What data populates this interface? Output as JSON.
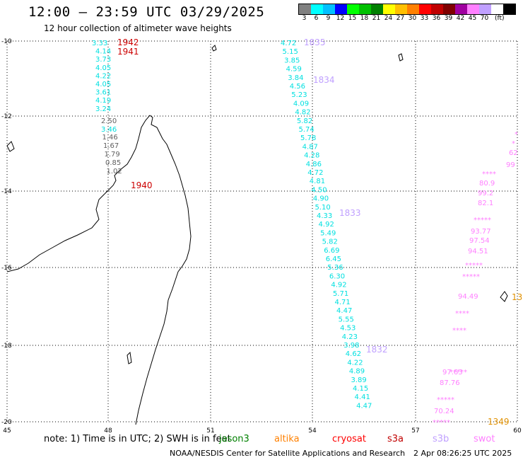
{
  "header": {
    "title": "12:00 – 23:59 UTC 03/29/2025",
    "subtitle": "12 hour collection of altimeter wave heights"
  },
  "colorbar": {
    "colors": [
      "#808080",
      "#00ffff",
      "#00c0ff",
      "#0000ff",
      "#00ff00",
      "#00c000",
      "#008000",
      "#ffff00",
      "#ffc000",
      "#ff8000",
      "#ff0000",
      "#c00000",
      "#800000",
      "#a000a0",
      "#ff80ff",
      "#c0a0ff",
      "#ffffff",
      "#000000"
    ],
    "labels": [
      "3",
      "6",
      "9",
      "12",
      "15",
      "18",
      "21",
      "24",
      "27",
      "30",
      "33",
      "36",
      "39",
      "42",
      "45",
      "70"
    ],
    "unit": "(ft)"
  },
  "axes": {
    "lat_labels": [
      "-10",
      "-12",
      "-14",
      "-16",
      "-18",
      "-20"
    ],
    "lon_labels": [
      "45",
      "48",
      "51",
      "54",
      "57",
      "60"
    ]
  },
  "tracks": {
    "jason": {
      "color": "#00e0e0",
      "values_a": [
        "3.33",
        "4.14",
        "3.73",
        "4.05",
        "4.22",
        "4.05",
        "3.61",
        "4.19",
        "3.24"
      ],
      "values_b": [
        "3.46"
      ],
      "time_top": "1942",
      "time_mid": "1941",
      "time_low": "1940",
      "time_color": "#cc0000"
    },
    "gray": {
      "color": "#606060",
      "values": [
        "2.50",
        "1.46",
        "1.67",
        "1.79",
        "0.85",
        "1.02"
      ]
    },
    "s3b": {
      "color": "#00e0e0",
      "values": [
        "4.72",
        "5.15",
        "3.85",
        "4.59",
        "3.84",
        "4.56",
        "5.23",
        "4.09",
        "4.82",
        "5.82",
        "5.74",
        "5.78",
        "4.87",
        "4.28",
        "4.86",
        "4.72",
        "4.81",
        "4.50",
        "4.90",
        "5.10",
        "4.33",
        "4.92",
        "5.49",
        "5.82",
        "6.69",
        "6.45",
        "5.36",
        "6.30",
        "4.92",
        "5.71",
        "4.71",
        "4.47",
        "5.55",
        "4.53",
        "4.23",
        "3.98",
        "4.62",
        "4.22",
        "4.89",
        "3.89",
        "4.15",
        "4.41",
        "4.47"
      ],
      "times": [
        "1835",
        "1834",
        "1833",
        "1832"
      ],
      "time_color": "#c0a0ff"
    },
    "swot": {
      "color": "#ff80ff",
      "values": [
        "*",
        "*",
        "62",
        "99",
        "****",
        "80.9",
        "99.2",
        "82.1",
        "*****",
        "93.77",
        "97.54",
        "94.51",
        "*****",
        "*****",
        "94.49",
        "****",
        "****",
        "*****",
        "97.63",
        "87.76",
        "*****",
        "70.24",
        "*****"
      ],
      "time": "1349",
      "time_color": "#e09000"
    }
  },
  "legend": {
    "note": "note:  1) Time is in UTC; 2) SWH is in feet",
    "items": [
      {
        "label": "jason3",
        "color": "#008000"
      },
      {
        "label": "altika",
        "color": "#ff8000"
      },
      {
        "label": "cryosat",
        "color": "#ff0000"
      },
      {
        "label": "s3a",
        "color": "#c00000"
      },
      {
        "label": "s3b",
        "color": "#c0a0ff"
      },
      {
        "label": "swot",
        "color": "#ff80ff"
      }
    ]
  },
  "footer": {
    "credit": "NOAA/NESDIS Center for Satellite Applications and Research",
    "timestamp": "2 Apr 08:26:25 UTC 2025"
  }
}
